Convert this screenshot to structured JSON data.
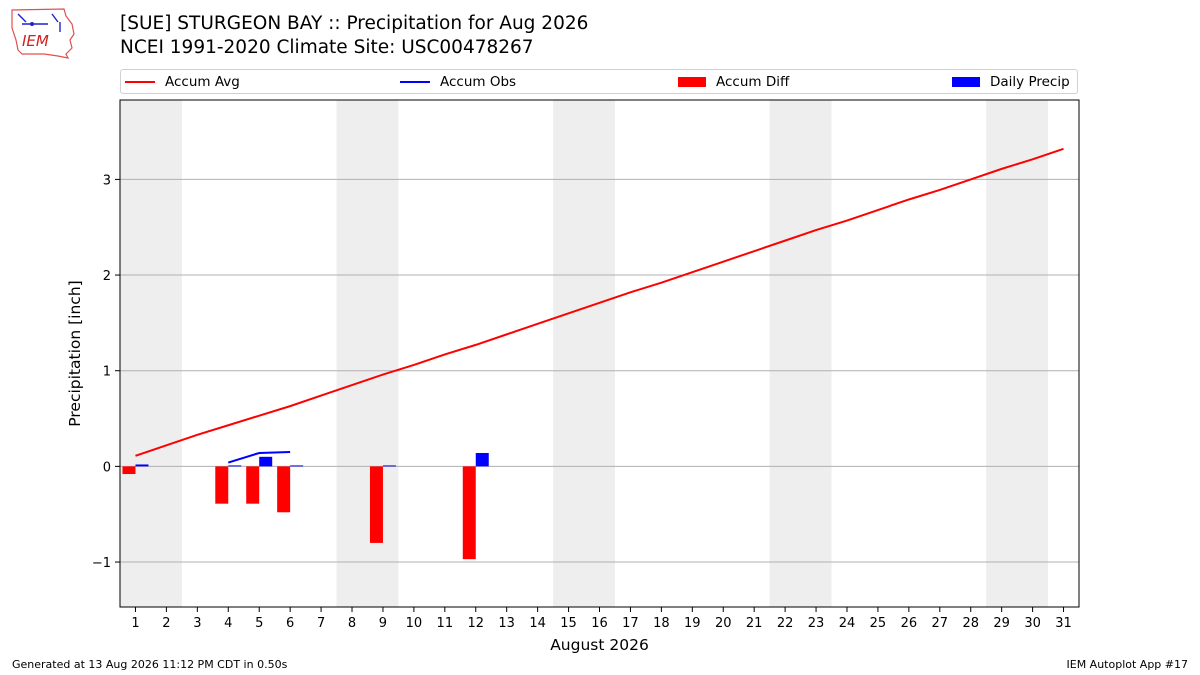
{
  "header": {
    "title_line1": "[SUE] STURGEON BAY :: Precipitation for Aug 2026",
    "title_line2": "NCEI 1991-2020 Climate Site: USC00478267"
  },
  "logo": {
    "text": "IEM"
  },
  "legend": {
    "items": [
      {
        "label": "Accum Avg",
        "kind": "line",
        "color": "#ff0000"
      },
      {
        "label": "Accum Obs",
        "kind": "line",
        "color": "#0000ff"
      },
      {
        "label": "Accum Diff",
        "kind": "patch",
        "color": "#ff0000"
      },
      {
        "label": "Daily Precip",
        "kind": "patch",
        "color": "#0000ff"
      }
    ]
  },
  "footer": {
    "left": "Generated at 13 Aug 2026 11:12 PM CDT in 0.50s",
    "right": "IEM Autoplot App #17"
  },
  "chart_data": {
    "type": "bar",
    "xlabel": "August 2026",
    "ylabel": "Precipitation [inch]",
    "xlim": [
      0.5,
      31.5
    ],
    "ylim": [
      -1.47,
      3.83
    ],
    "yticks": [
      -1,
      0,
      1,
      2,
      3
    ],
    "ytick_labels": [
      "−1",
      "0",
      "1",
      "2",
      "3"
    ],
    "xticks": [
      1,
      2,
      3,
      4,
      5,
      6,
      7,
      8,
      9,
      10,
      11,
      12,
      13,
      14,
      15,
      16,
      17,
      18,
      19,
      20,
      21,
      22,
      23,
      24,
      25,
      26,
      27,
      28,
      29,
      30,
      31
    ],
    "grid": "horizontal",
    "weekend_shading": [
      [
        1,
        2
      ],
      [
        8,
        9
      ],
      [
        15,
        16
      ],
      [
        22,
        23
      ],
      [
        29,
        30
      ]
    ],
    "shade_color": "#eeeeee",
    "series": [
      {
        "name": "Accum Avg",
        "kind": "line",
        "color": "#ff0000",
        "x": [
          1,
          2,
          3,
          4,
          5,
          6,
          7,
          8,
          9,
          10,
          11,
          12,
          13,
          14,
          15,
          16,
          17,
          18,
          19,
          20,
          21,
          22,
          23,
          24,
          25,
          26,
          27,
          28,
          29,
          30,
          31
        ],
        "values": [
          0.11,
          0.22,
          0.33,
          0.43,
          0.53,
          0.63,
          0.74,
          0.85,
          0.96,
          1.06,
          1.17,
          1.27,
          1.38,
          1.49,
          1.6,
          1.71,
          1.82,
          1.92,
          2.03,
          2.14,
          2.25,
          2.36,
          2.47,
          2.57,
          2.68,
          2.79,
          2.89,
          3.0,
          3.11,
          3.21,
          3.32
        ]
      },
      {
        "name": "Accum Obs",
        "kind": "line",
        "color": "#0000ff",
        "x": [
          4,
          5,
          6
        ],
        "values": [
          0.04,
          0.14,
          0.15
        ]
      },
      {
        "name": "Accum Diff",
        "kind": "bar",
        "color": "#ff0000",
        "x": [
          1,
          4,
          5,
          6,
          9,
          12
        ],
        "values": [
          -0.08,
          -0.39,
          -0.39,
          -0.48,
          -0.8,
          -0.97
        ]
      },
      {
        "name": "Daily Precip",
        "kind": "bar",
        "color": "#0000ff",
        "x": [
          1,
          4,
          5,
          6,
          9,
          12
        ],
        "values": [
          0.02,
          0.01,
          0.1,
          0.01,
          0.01,
          0.14
        ]
      }
    ]
  }
}
